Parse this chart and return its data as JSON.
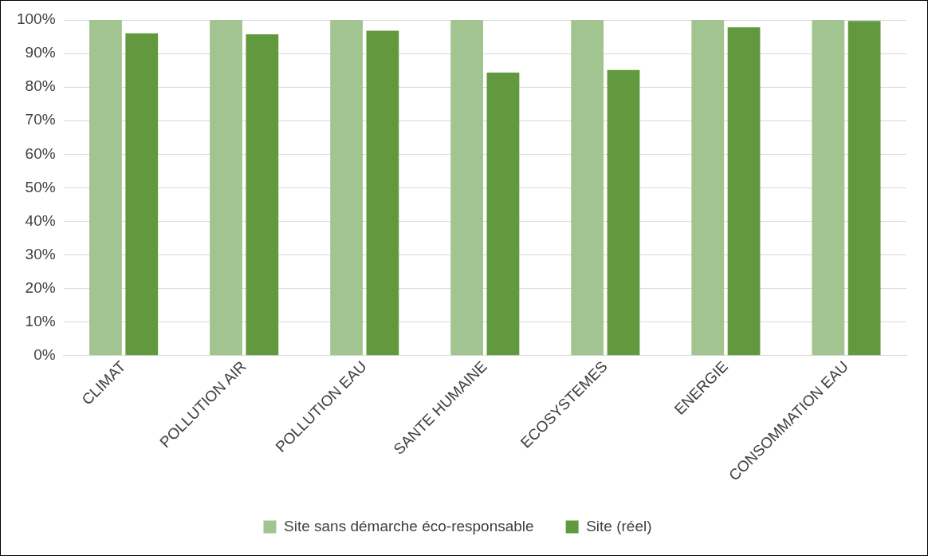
{
  "chart_data": {
    "type": "bar",
    "categories": [
      "CLIMAT",
      "POLLUTION AIR",
      "POLLUTION EAU",
      "SANTE HUMAINE",
      "ECOSYSTEMES",
      "ENERGIE",
      "CONSOMMATION EAU"
    ],
    "series": [
      {
        "name": "Site sans démarche éco-responsable",
        "color": "#a1c490",
        "values": [
          100,
          100,
          100,
          100,
          100,
          100,
          100
        ]
      },
      {
        "name": "Site (réel)",
        "color": "#62993e",
        "values": [
          96,
          95.7,
          96.8,
          84.3,
          85.1,
          97.8,
          99.7
        ]
      }
    ],
    "ylim": [
      0,
      100
    ],
    "yticks": [
      {
        "value": 0,
        "label": "0%"
      },
      {
        "value": 10,
        "label": "10%"
      },
      {
        "value": 20,
        "label": "20%"
      },
      {
        "value": 30,
        "label": "30%"
      },
      {
        "value": 40,
        "label": "40%"
      },
      {
        "value": 50,
        "label": "50%"
      },
      {
        "value": 60,
        "label": "60%"
      },
      {
        "value": 70,
        "label": "70%"
      },
      {
        "value": 80,
        "label": "80%"
      },
      {
        "value": 90,
        "label": "90%"
      },
      {
        "value": 100,
        "label": "100%"
      }
    ],
    "grid": "y",
    "legend": "bottom"
  }
}
